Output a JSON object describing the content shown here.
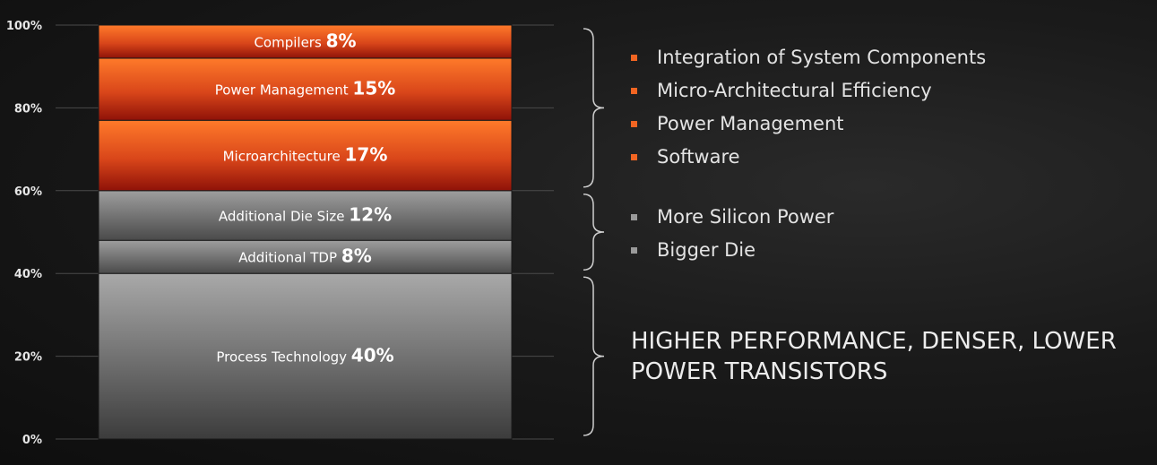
{
  "chart_data": {
    "type": "bar",
    "stacked": true,
    "ylim": [
      0,
      100
    ],
    "y_ticks": [
      "0%",
      "20%",
      "40%",
      "60%",
      "80%",
      "100%"
    ],
    "segments": [
      {
        "label": "Process Technology",
        "value": 40,
        "value_label": "40%",
        "group": "process"
      },
      {
        "label": "Additional TDP",
        "value": 8,
        "value_label": "8%",
        "group": "silicon"
      },
      {
        "label": "Additional Die Size",
        "value": 12,
        "value_label": "12%",
        "group": "silicon"
      },
      {
        "label": "Microarchitecture",
        "value": 17,
        "value_label": "17%",
        "group": "design"
      },
      {
        "label": "Power Management",
        "value": 15,
        "value_label": "15%",
        "group": "design"
      },
      {
        "label": "Compilers",
        "value": 8,
        "value_label": "8%",
        "group": "design"
      }
    ],
    "colors": {
      "design_light": "#ff7a2a",
      "design_dark": "#8f1208",
      "silicon_light": "#9e9e9e",
      "silicon_dark": "#4a4a4a",
      "process_light": "#a9a9a9",
      "process_dark": "#3c3c3c"
    },
    "grid": true,
    "legend": "none"
  },
  "brackets": [
    {
      "group": "design",
      "from": 60,
      "to": 100
    },
    {
      "group": "silicon",
      "from": 40,
      "to": 60
    },
    {
      "group": "process",
      "from": 0,
      "to": 40
    }
  ],
  "annotations": {
    "design_items": [
      "Integration of System Components",
      "Micro-Architectural Efficiency",
      "Power Management",
      "Software"
    ],
    "silicon_items": [
      "More Silicon Power",
      "Bigger Die"
    ],
    "process_headline": "HIGHER PERFORMANCE, DENSER, LOWER POWER TRANSISTORS"
  }
}
